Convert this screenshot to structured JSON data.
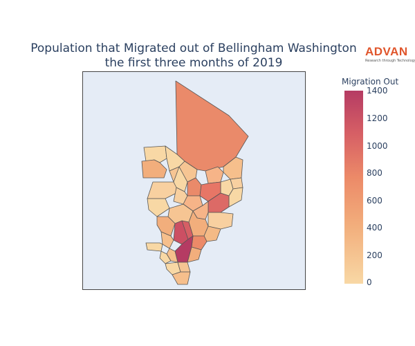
{
  "title": {
    "line1": "Population that Migrated out of Bellingham Washington",
    "line2": "the first three months of 2019"
  },
  "logo": {
    "name": "ADVAN",
    "tagline": "Research through Technology"
  },
  "legend": {
    "title": "Migration Out",
    "ticks": [
      "1400",
      "1200",
      "1000",
      "800",
      "600",
      "400",
      "200",
      "0"
    ]
  },
  "colorscale": {
    "low": "#f8d8a5",
    "mid_low": "#f2ae7c",
    "mid": "#ec8a68",
    "mid_high": "#d65f65",
    "high": "#b53b63"
  },
  "colors": {
    "map_background": "#e5ecf6",
    "region_border": "#555555",
    "title_text": "#2a3f5f",
    "brand": "#e0552b"
  }
}
